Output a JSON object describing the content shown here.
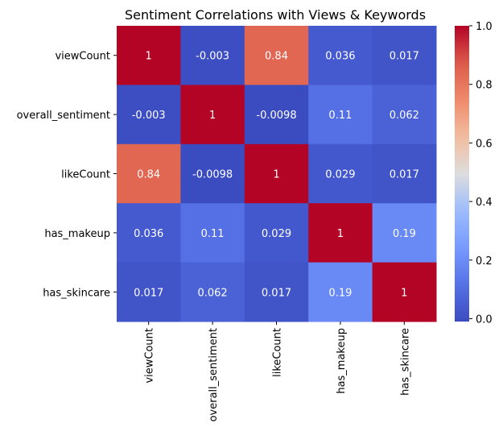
{
  "chart_data": {
    "type": "heatmap",
    "title": "Sentiment Correlations with Views & Keywords",
    "xlabel": "",
    "ylabel": "",
    "row_labels": [
      "viewCount",
      "overall_sentiment",
      "likeCount",
      "has_makeup",
      "has_skincare"
    ],
    "col_labels": [
      "viewCount",
      "overall_sentiment",
      "likeCount",
      "has_makeup",
      "has_skincare"
    ],
    "values": [
      [
        1,
        -0.003,
        0.84,
        0.036,
        0.017
      ],
      [
        -0.003,
        1,
        -0.0098,
        0.11,
        0.062
      ],
      [
        0.84,
        -0.0098,
        1,
        0.029,
        0.017
      ],
      [
        0.036,
        0.11,
        0.029,
        1,
        0.19
      ],
      [
        0.017,
        0.062,
        0.017,
        0.19,
        1
      ]
    ],
    "cell_labels": [
      [
        "1",
        "-0.003",
        "0.84",
        "0.036",
        "0.017"
      ],
      [
        "-0.003",
        "1",
        "-0.0098",
        "0.11",
        "0.062"
      ],
      [
        "0.84",
        "-0.0098",
        "1",
        "0.029",
        "0.017"
      ],
      [
        "0.036",
        "0.11",
        "0.029",
        "1",
        "0.19"
      ],
      [
        "0.017",
        "0.062",
        "0.017",
        "0.19",
        "1"
      ]
    ],
    "colormap": "coolwarm",
    "colorbar": {
      "min": -0.0098,
      "max": 1,
      "ticks": [
        0.0,
        0.2,
        0.4,
        0.6,
        0.8,
        1.0
      ],
      "tick_labels": [
        "0.0",
        "0.2",
        "0.4",
        "0.6",
        "0.8",
        "1.0"
      ]
    }
  }
}
